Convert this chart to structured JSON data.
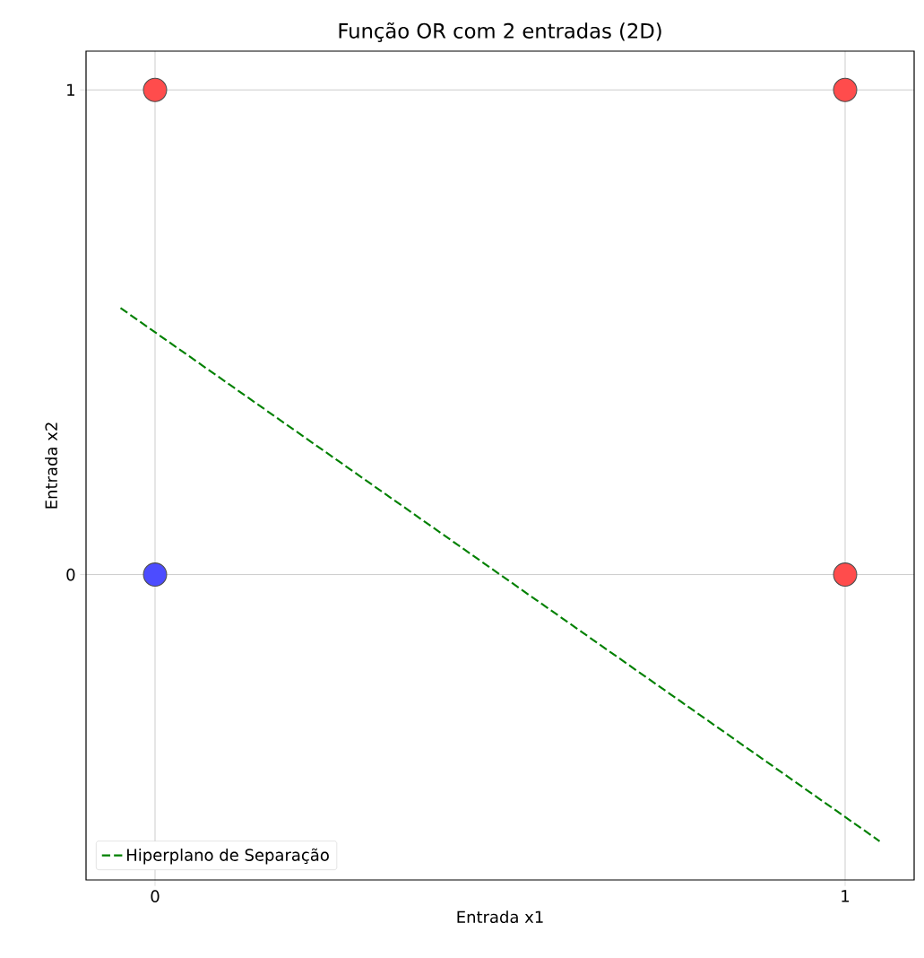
{
  "chart_data": {
    "type": "scatter",
    "title": "Função OR com 2 entradas (2D)",
    "xlabel": "Entrada x1",
    "ylabel": "Entrada x2",
    "xlim": [
      -0.1,
      1.1
    ],
    "ylim": [
      -0.63,
      1.08
    ],
    "xticks": [
      0,
      1
    ],
    "yticks": [
      0,
      1
    ],
    "grid": true,
    "legend": "bottom left",
    "series": [
      {
        "x": [
          0,
          0,
          1,
          1
        ],
        "values": [
          0,
          1,
          0,
          1
        ],
        "colors": [
          "#4c4cff",
          "#ff4c4c",
          "#ff4c4c",
          "#ff4c4c"
        ],
        "marker": "circle"
      },
      {
        "type": "line",
        "name": "Hiperplano de Separação",
        "x": [
          -0.05,
          1.05
        ],
        "values": [
          0.55,
          -0.55
        ],
        "color": "#008000",
        "line_style": "dashed",
        "marker": "none"
      }
    ]
  }
}
